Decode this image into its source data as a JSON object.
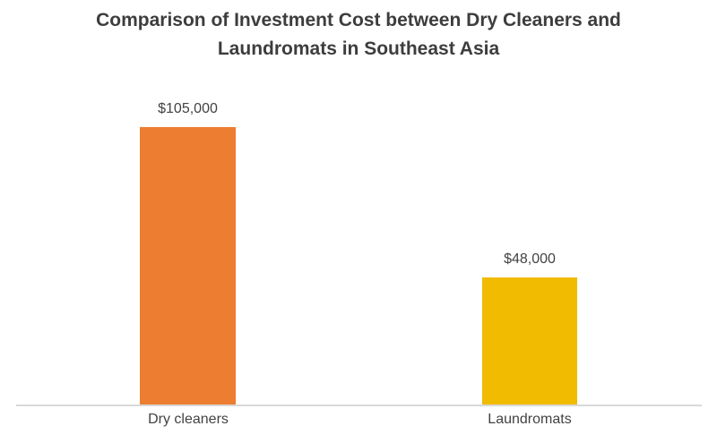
{
  "chart_title": {
    "line1": "Comparison of Investment Cost between Dry Cleaners and",
    "line2": "Laundromats in Southeast Asia"
  },
  "chart_data": {
    "type": "bar",
    "title": "Comparison of Investment Cost between Dry Cleaners and Laundromats in Southeast Asia",
    "categories": [
      "Dry cleaners",
      "Laundromats"
    ],
    "values": [
      105000,
      48000
    ],
    "value_labels": [
      "$105,000",
      "$48,000"
    ],
    "bar_colors": [
      "#ED7D31",
      "#F0BB00"
    ],
    "xlabel": "",
    "ylabel": "",
    "ylim": [
      0,
      105000
    ],
    "grid": false,
    "legend": "none"
  },
  "colors": {
    "title_text": "#3D3D3D",
    "label_text": "#424242",
    "axis_line": "#D9D9D9",
    "background": "#FFFFFF"
  }
}
